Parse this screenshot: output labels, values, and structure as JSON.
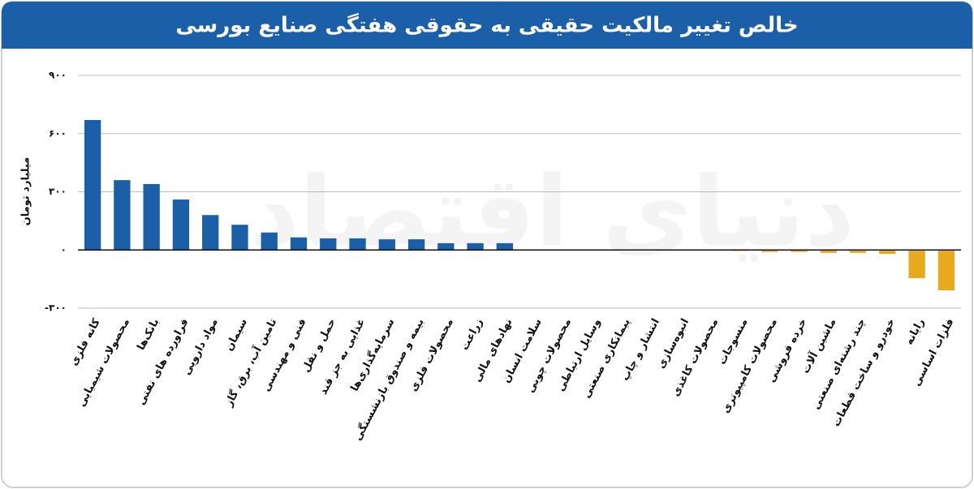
{
  "chart_data": {
    "type": "bar",
    "title": "خالص تغییر مالکیت حقیقی به حقوقی هفتگی صنایع بورسی",
    "y_label": "میلیارد تومان",
    "watermark": "دنیای اقتصاد",
    "categories": [
      "کانه فلزی",
      "محصولات شیمیایی",
      "بانک‌ها",
      "فراورده های نفتی",
      "مواد دارویی",
      "سیمان",
      "تامین آب، برق، گاز",
      "فنی و مهندسی",
      "حمل و نقل",
      "غذایی به جز قند",
      "سرمایه‌گذاری‌ها",
      "بیمه و صندوق بازنشستگی",
      "محصولات فلزی",
      "زراعت",
      "نهادهای مالی",
      "سلامت انسان",
      "محصولات چوبی",
      "وسایل ارتباطی",
      "پیمانکاری صنعتی",
      "انتشار و چاپ",
      "انبوه‌سازی",
      "محصولات کاغذی",
      "منسوجات",
      "محصولات کامپیوتری",
      "خرده فروشی",
      "ماشین آلات",
      "چند رشته‌ای صنعتی",
      "خودرو و ساخت قطعات",
      "رایانه",
      "فلزات اساسی"
    ],
    "values": [
      670,
      360,
      340,
      260,
      180,
      130,
      90,
      65,
      60,
      60,
      55,
      55,
      35,
      35,
      35,
      0,
      0,
      0,
      0,
      0,
      0,
      -3,
      -5,
      -10,
      -10,
      -15,
      -15,
      -20,
      -145,
      -208
    ],
    "colors": {
      "positive": "#1b5fa8",
      "negative": "#e8a91c"
    },
    "ylim": [
      -300,
      900
    ],
    "yticks": [
      {
        "value": -300,
        "label": "-۳۰۰"
      },
      {
        "value": 0,
        "label": "۰"
      },
      {
        "value": 300,
        "label": "۳۰۰"
      },
      {
        "value": 600,
        "label": "۶۰۰"
      },
      {
        "value": 900,
        "label": "۹۰۰"
      }
    ],
    "grid": true
  }
}
